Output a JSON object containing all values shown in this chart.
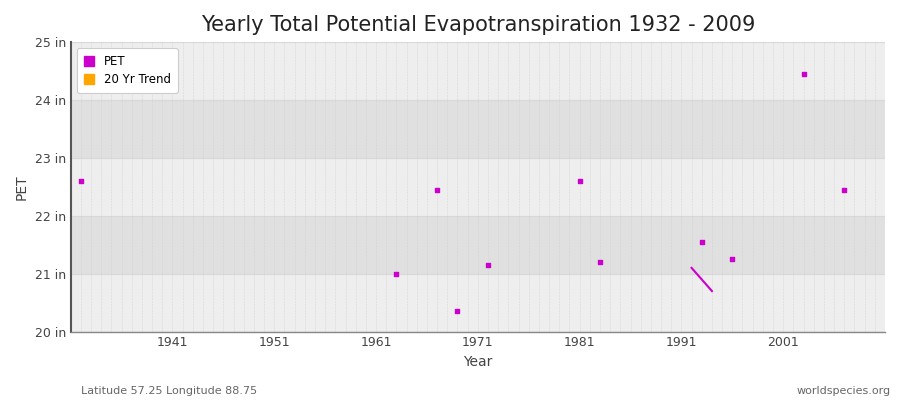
{
  "title": "Yearly Total Potential Evapotranspiration 1932 - 2009",
  "xlabel": "Year",
  "ylabel": "PET",
  "xlim": [
    1931,
    2011
  ],
  "ylim": [
    20.0,
    25.0
  ],
  "yticks": [
    20,
    21,
    22,
    23,
    24,
    25
  ],
  "ytick_labels": [
    "20 in",
    "21 in",
    "22 in",
    "23 in",
    "24 in",
    "25 in"
  ],
  "xticks": [
    1941,
    1951,
    1961,
    1971,
    1981,
    1991,
    2001
  ],
  "bg_color": "#ffffff",
  "plot_bg_color": "#e8e8e8",
  "band_light": "#eeeeee",
  "band_dark": "#e0e0e0",
  "grid_vline_color": "#c8c8c8",
  "grid_hline_color": "#d8d8d8",
  "pet_color": "#cc00cc",
  "trend_color": "#cc00cc",
  "trend_legend_color": "#ffa500",
  "pet_points": [
    [
      1932,
      22.6
    ],
    [
      1963,
      21.0
    ],
    [
      1967,
      22.45
    ],
    [
      1969,
      20.35
    ],
    [
      1972,
      21.15
    ],
    [
      1981,
      22.6
    ],
    [
      1983,
      21.2
    ],
    [
      1993,
      21.55
    ],
    [
      1996,
      21.25
    ],
    [
      2003,
      24.45
    ],
    [
      2007,
      22.45
    ]
  ],
  "trend_line": [
    [
      1992,
      21.1
    ],
    [
      1994,
      20.7
    ]
  ],
  "footnote_left": "Latitude 57.25 Longitude 88.75",
  "footnote_right": "worldspecies.org",
  "title_fontsize": 15,
  "axis_label_fontsize": 10,
  "tick_fontsize": 9,
  "footnote_fontsize": 8
}
